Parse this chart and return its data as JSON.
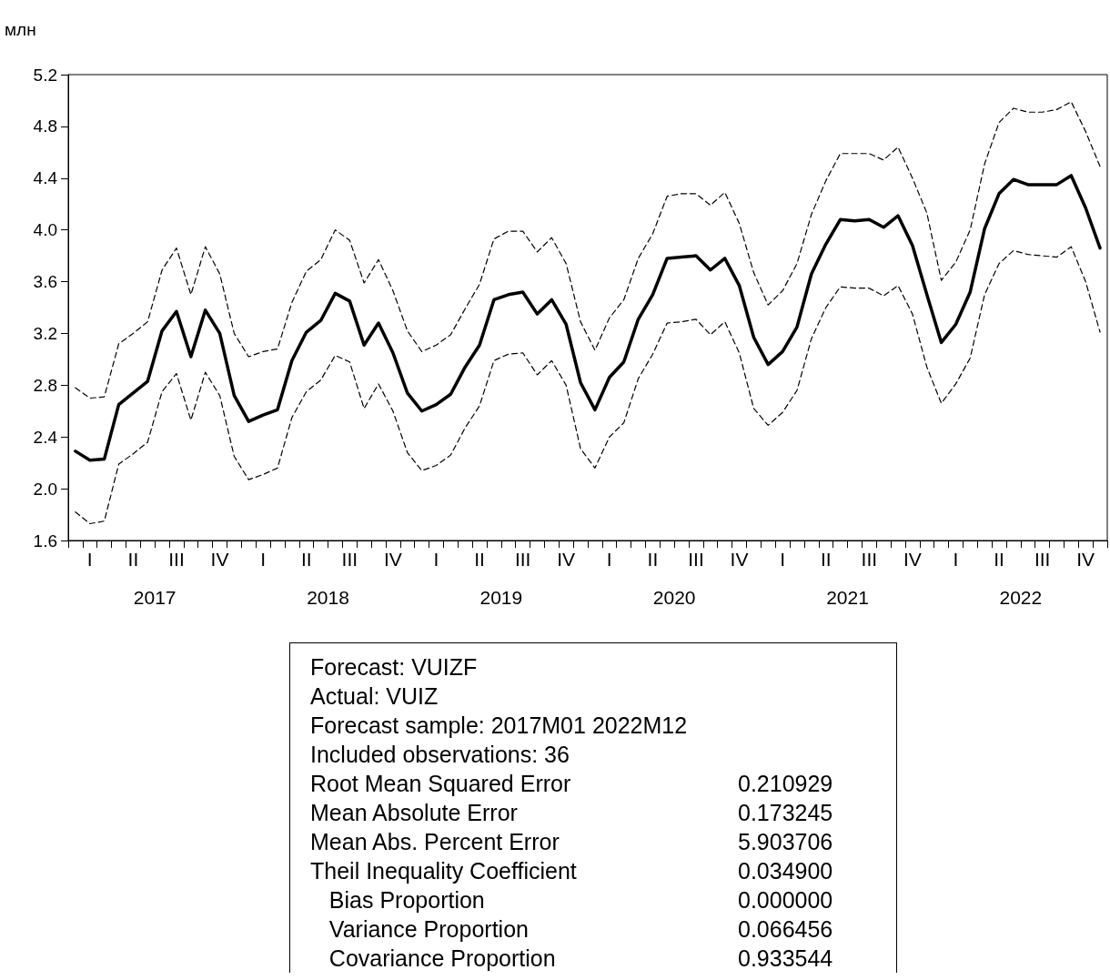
{
  "chart_data": {
    "type": "line",
    "ylabel": "млн",
    "categories": [
      null,
      "I",
      null,
      null,
      "II",
      null,
      null,
      "III",
      null,
      null,
      "IV",
      null,
      null,
      "I",
      null,
      null,
      "II",
      null,
      null,
      "III",
      null,
      null,
      "IV",
      null,
      null,
      "I",
      null,
      null,
      "II",
      null,
      null,
      "III",
      null,
      null,
      "IV",
      null,
      null,
      "I",
      null,
      null,
      "II",
      null,
      null,
      "III",
      null,
      null,
      "IV",
      null,
      null,
      "I",
      null,
      null,
      "II",
      null,
      null,
      "III",
      null,
      null,
      "IV",
      null,
      null,
      "I",
      null,
      null,
      "II",
      null,
      null,
      "III",
      null,
      null,
      "IV",
      null
    ],
    "series": [
      {
        "color": "#000000",
        "line_style": "solid",
        "values": [
          2.29,
          2.22,
          2.23,
          2.65,
          2.74,
          2.83,
          3.22,
          3.37,
          3.02,
          3.38,
          3.2,
          2.72,
          2.52,
          2.57,
          2.61,
          2.99,
          3.21,
          3.3,
          3.51,
          3.45,
          3.11,
          3.28,
          3.05,
          2.74,
          2.6,
          2.65,
          2.73,
          2.94,
          3.11,
          3.46,
          3.5,
          3.52,
          3.35,
          3.46,
          3.27,
          2.82,
          2.61,
          2.86,
          2.98,
          3.31,
          3.5,
          3.78,
          3.79,
          3.8,
          3.69,
          3.78,
          3.57,
          3.17,
          2.96,
          3.06,
          3.25,
          3.66,
          3.89,
          4.08,
          4.07,
          4.08,
          4.02,
          4.11,
          3.88,
          3.5,
          3.13,
          3.27,
          3.52,
          4.01,
          4.28,
          4.39,
          4.35,
          4.35,
          4.35,
          4.42,
          4.17,
          3.86
        ]
      },
      {
        "color": "#000000",
        "line_style": "dashed",
        "values": [
          2.78,
          2.7,
          2.71,
          3.12,
          3.2,
          3.29,
          3.69,
          3.86,
          3.5,
          3.87,
          3.66,
          3.2,
          3.02,
          3.06,
          3.08,
          3.44,
          3.68,
          3.77,
          4.0,
          3.92,
          3.59,
          3.77,
          3.53,
          3.22,
          3.06,
          3.11,
          3.19,
          3.39,
          3.58,
          3.93,
          3.99,
          3.99,
          3.83,
          3.94,
          3.74,
          3.29,
          3.07,
          3.32,
          3.46,
          3.78,
          3.97,
          4.26,
          4.28,
          4.28,
          4.19,
          4.29,
          4.05,
          3.67,
          3.42,
          3.53,
          3.74,
          4.12,
          4.38,
          4.59,
          4.59,
          4.59,
          4.54,
          4.64,
          4.4,
          4.13,
          3.61,
          3.75,
          4.0,
          4.51,
          4.83,
          4.94,
          4.91,
          4.91,
          4.93,
          4.99,
          4.76,
          4.49
        ]
      },
      {
        "color": "#000000",
        "line_style": "dashed",
        "values": [
          1.82,
          1.73,
          1.75,
          2.19,
          2.27,
          2.36,
          2.75,
          2.89,
          2.53,
          2.9,
          2.72,
          2.25,
          2.07,
          2.11,
          2.16,
          2.55,
          2.75,
          2.84,
          3.03,
          2.98,
          2.62,
          2.81,
          2.6,
          2.28,
          2.14,
          2.18,
          2.26,
          2.47,
          2.64,
          2.99,
          3.04,
          3.05,
          2.88,
          2.99,
          2.8,
          2.31,
          2.16,
          2.4,
          2.51,
          2.85,
          3.04,
          3.28,
          3.29,
          3.31,
          3.19,
          3.29,
          3.05,
          2.62,
          2.49,
          2.59,
          2.76,
          3.16,
          3.4,
          3.56,
          3.55,
          3.55,
          3.49,
          3.57,
          3.35,
          2.94,
          2.66,
          2.81,
          3.01,
          3.5,
          3.74,
          3.84,
          3.81,
          3.8,
          3.79,
          3.87,
          3.6,
          3.21
        ]
      }
    ],
    "ylim": [
      1.6,
      5.2
    ],
    "yticks": [
      {
        "value": 1.6,
        "label": "1.6"
      },
      {
        "value": 2.0,
        "label": "2.0"
      },
      {
        "value": 2.4,
        "label": "2.4"
      },
      {
        "value": 2.8,
        "label": "2.8"
      },
      {
        "value": 3.2,
        "label": "3.2"
      },
      {
        "value": 3.6,
        "label": "3.6"
      },
      {
        "value": 4.0,
        "label": "4.0"
      },
      {
        "value": 4.4,
        "label": "4.4"
      },
      {
        "value": 4.8,
        "label": "4.8"
      },
      {
        "value": 5.2,
        "label": "5.2"
      }
    ],
    "grid": false,
    "marker": "none",
    "annotations": [
      "2017",
      "2018",
      "2019",
      "2020",
      "2021",
      "2022",
      "Forecast: VUIZF",
      "Actual: VUIZ",
      "Forecast sample: 2017M01 2022M12",
      "Included observations: 36",
      "Root Mean Squared Error\t0.210929",
      "Mean Absolute Error\t0.173245",
      "Mean Abs. Percent Error\t5.903706",
      "Theil Inequality Coefficient\t0.034900",
      "   Bias Proportion\t0.000000",
      "   Variance Proportion\t0.066456",
      "   Covariance Proportion\t0.933544"
    ]
  }
}
